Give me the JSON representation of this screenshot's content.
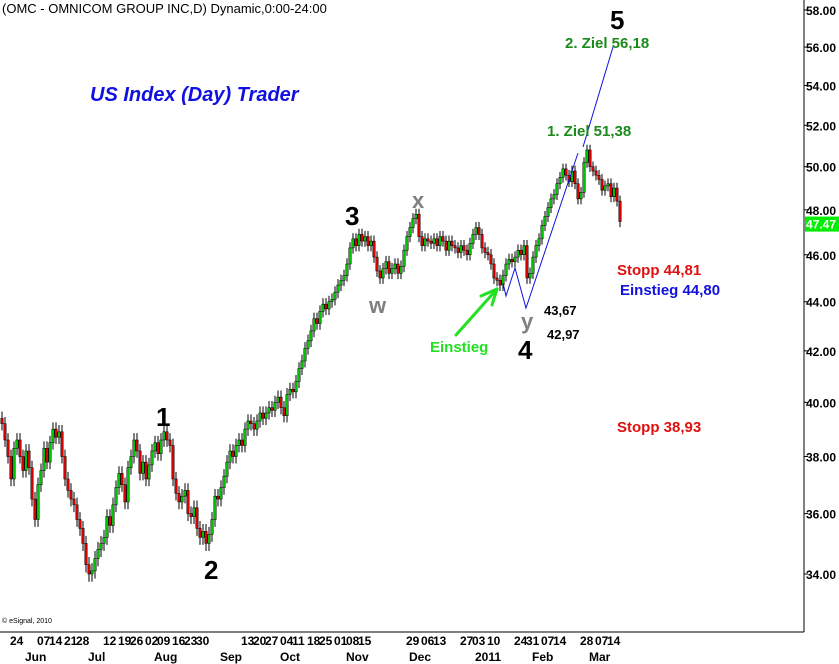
{
  "header": {
    "title": "(OMC - OMNICOM GROUP INC,D) Dynamic,0:00-24:00"
  },
  "footer": {
    "copyright": "© eSignal, 2010"
  },
  "annotations": {
    "brand": "US Index (Day) Trader",
    "wave5": "5",
    "ziel2": "2. Ziel 56,18",
    "ziel1": "1. Ziel 51,38",
    "wave3": "3",
    "wavex": "x",
    "wavew": "w",
    "wavey": "y",
    "wave4": "4",
    "wave1": "1",
    "wave2": "2",
    "level_43_67": "43,67",
    "level_42_97": "42,97",
    "einstieg_arrow": "Einstieg",
    "stopp1": "Stopp 44,81",
    "einstieg_level": "Einstieg 44,80",
    "stopp2": "Stopp 38,93"
  },
  "colors": {
    "up": "#00cc00",
    "down": "#e00000",
    "last_price_bg": "#00ee00",
    "wave_line": "#1010e0",
    "ziel": "#1a8a1a",
    "stopp": "#e01010",
    "einstieg": "#22e022"
  },
  "chart_data": {
    "type": "candlestick",
    "symbol": "OMC",
    "yscale": "log",
    "ylim": [
      33.5,
      58.5
    ],
    "y_ticks": [
      34,
      36,
      38,
      40,
      42,
      44,
      46,
      48,
      50,
      52,
      54,
      56,
      58
    ],
    "y_tick_labels": [
      "34.00",
      "36.00",
      "38.00",
      "40.00",
      "42.00",
      "44.00",
      "46.00",
      "48.00",
      "50.00",
      "52.00",
      "54.00",
      "56.00",
      "58.00"
    ],
    "last_price": "47.47",
    "grid": false,
    "closes": [
      39.2,
      38.6,
      38.0,
      37.2,
      38.3,
      38.6,
      38.0,
      37.5,
      38.2,
      37.6,
      36.5,
      35.8,
      37.0,
      37.5,
      38.3,
      37.8,
      38.5,
      39.0,
      38.7,
      38.9,
      38.0,
      37.2,
      36.8,
      36.5,
      36.3,
      35.8,
      35.5,
      35.0,
      34.3,
      34.0,
      34.1,
      34.5,
      34.8,
      35.0,
      35.2,
      35.9,
      35.6,
      36.3,
      36.9,
      37.4,
      37.0,
      36.4,
      37.6,
      38.0,
      38.6,
      38.2,
      37.4,
      37.8,
      37.2,
      37.7,
      38.2,
      38.5,
      38.1,
      38.6,
      38.9,
      38.6,
      38.4,
      37.2,
      36.7,
      36.4,
      36.6,
      36.8,
      36.0,
      35.9,
      36.2,
      35.5,
      35.2,
      35.4,
      35.0,
      35.3,
      35.8,
      36.6,
      36.5,
      36.9,
      37.3,
      37.8,
      38.2,
      38.0,
      38.4,
      38.6,
      38.4,
      39.0,
      39.3,
      39.2,
      39.0,
      39.3,
      39.6,
      39.4,
      39.6,
      39.8,
      39.7,
      40.0,
      40.2,
      39.8,
      39.5,
      40.3,
      40.5,
      40.4,
      40.8,
      41.3,
      41.6,
      42.1,
      42.4,
      42.8,
      43.3,
      43.1,
      43.6,
      43.9,
      43.7,
      44.0,
      44.1,
      44.4,
      44.7,
      44.9,
      45.1,
      45.6,
      46.3,
      46.7,
      46.4,
      46.9,
      46.6,
      46.8,
      46.4,
      46.6,
      45.9,
      45.3,
      45.0,
      45.4,
      45.7,
      45.2,
      45.4,
      45.6,
      45.2,
      45.5,
      46.2,
      46.8,
      47.2,
      47.6,
      47.8,
      46.8,
      46.4,
      46.7,
      46.6,
      46.5,
      46.7,
      46.4,
      46.8,
      46.6,
      46.2,
      46.6,
      46.4,
      46.3,
      46.1,
      46.4,
      46.2,
      46.0,
      46.5,
      46.9,
      47.2,
      46.9,
      46.3,
      46.1,
      46.0,
      45.6,
      45.0,
      44.9,
      44.7,
      45.1,
      45.6,
      45.8,
      45.7,
      45.9,
      46.2,
      46.0,
      46.4,
      45.0,
      45.2,
      45.9,
      46.4,
      46.7,
      47.3,
      47.7,
      48.1,
      48.5,
      48.7,
      49.2,
      49.5,
      49.9,
      49.6,
      49.3,
      49.8,
      49.2,
      48.5,
      48.8,
      50.2,
      50.8,
      50.0,
      49.8,
      49.6,
      49.4,
      48.9,
      49.1,
      49.2,
      48.6,
      49.0,
      48.4,
      47.47
    ],
    "x_day_ticks": [
      [
        "24",
        4
      ],
      [
        "07",
        13
      ],
      [
        "14",
        17
      ],
      [
        "21",
        22
      ],
      [
        "28",
        26
      ],
      [
        "12",
        35
      ],
      [
        "19",
        40
      ],
      [
        "26",
        44
      ],
      [
        "02",
        49
      ],
      [
        "09",
        53
      ],
      [
        "16",
        58
      ],
      [
        "23",
        62
      ],
      [
        "30",
        66
      ],
      [
        "13",
        81
      ],
      [
        "20",
        85
      ],
      [
        "27",
        89
      ],
      [
        "04",
        94
      ],
      [
        "11",
        98
      ],
      [
        "18",
        103
      ],
      [
        "25",
        107
      ],
      [
        "01",
        112
      ],
      [
        "08",
        116
      ],
      [
        "15",
        120
      ],
      [
        "29",
        136
      ],
      [
        "06",
        141
      ],
      [
        "13",
        145
      ],
      [
        "27",
        154
      ],
      [
        "03",
        158
      ],
      [
        "10",
        163
      ],
      [
        "24",
        172
      ],
      [
        "31",
        176
      ],
      [
        "07",
        181
      ],
      [
        "14",
        185
      ],
      [
        "28",
        194
      ],
      [
        "07",
        199
      ],
      [
        "14",
        203
      ]
    ],
    "x_month_ticks": [
      [
        "Jun",
        11
      ],
      [
        "Jul",
        32
      ],
      [
        "Aug",
        54
      ],
      [
        "Sep",
        76
      ],
      [
        "Oct",
        96
      ],
      [
        "Nov",
        118
      ],
      [
        "Dec",
        139
      ],
      [
        "2011",
        161
      ],
      [
        "Feb",
        180
      ],
      [
        "Mar",
        199
      ]
    ],
    "wave_path_prices": [
      44.9,
      44.4,
      45.6,
      43.67
    ],
    "target_1": 51.38,
    "target_2": 56.18,
    "stop_1": 44.81,
    "entry": 44.8,
    "stop_2": 38.93,
    "low_y": 42.97
  }
}
